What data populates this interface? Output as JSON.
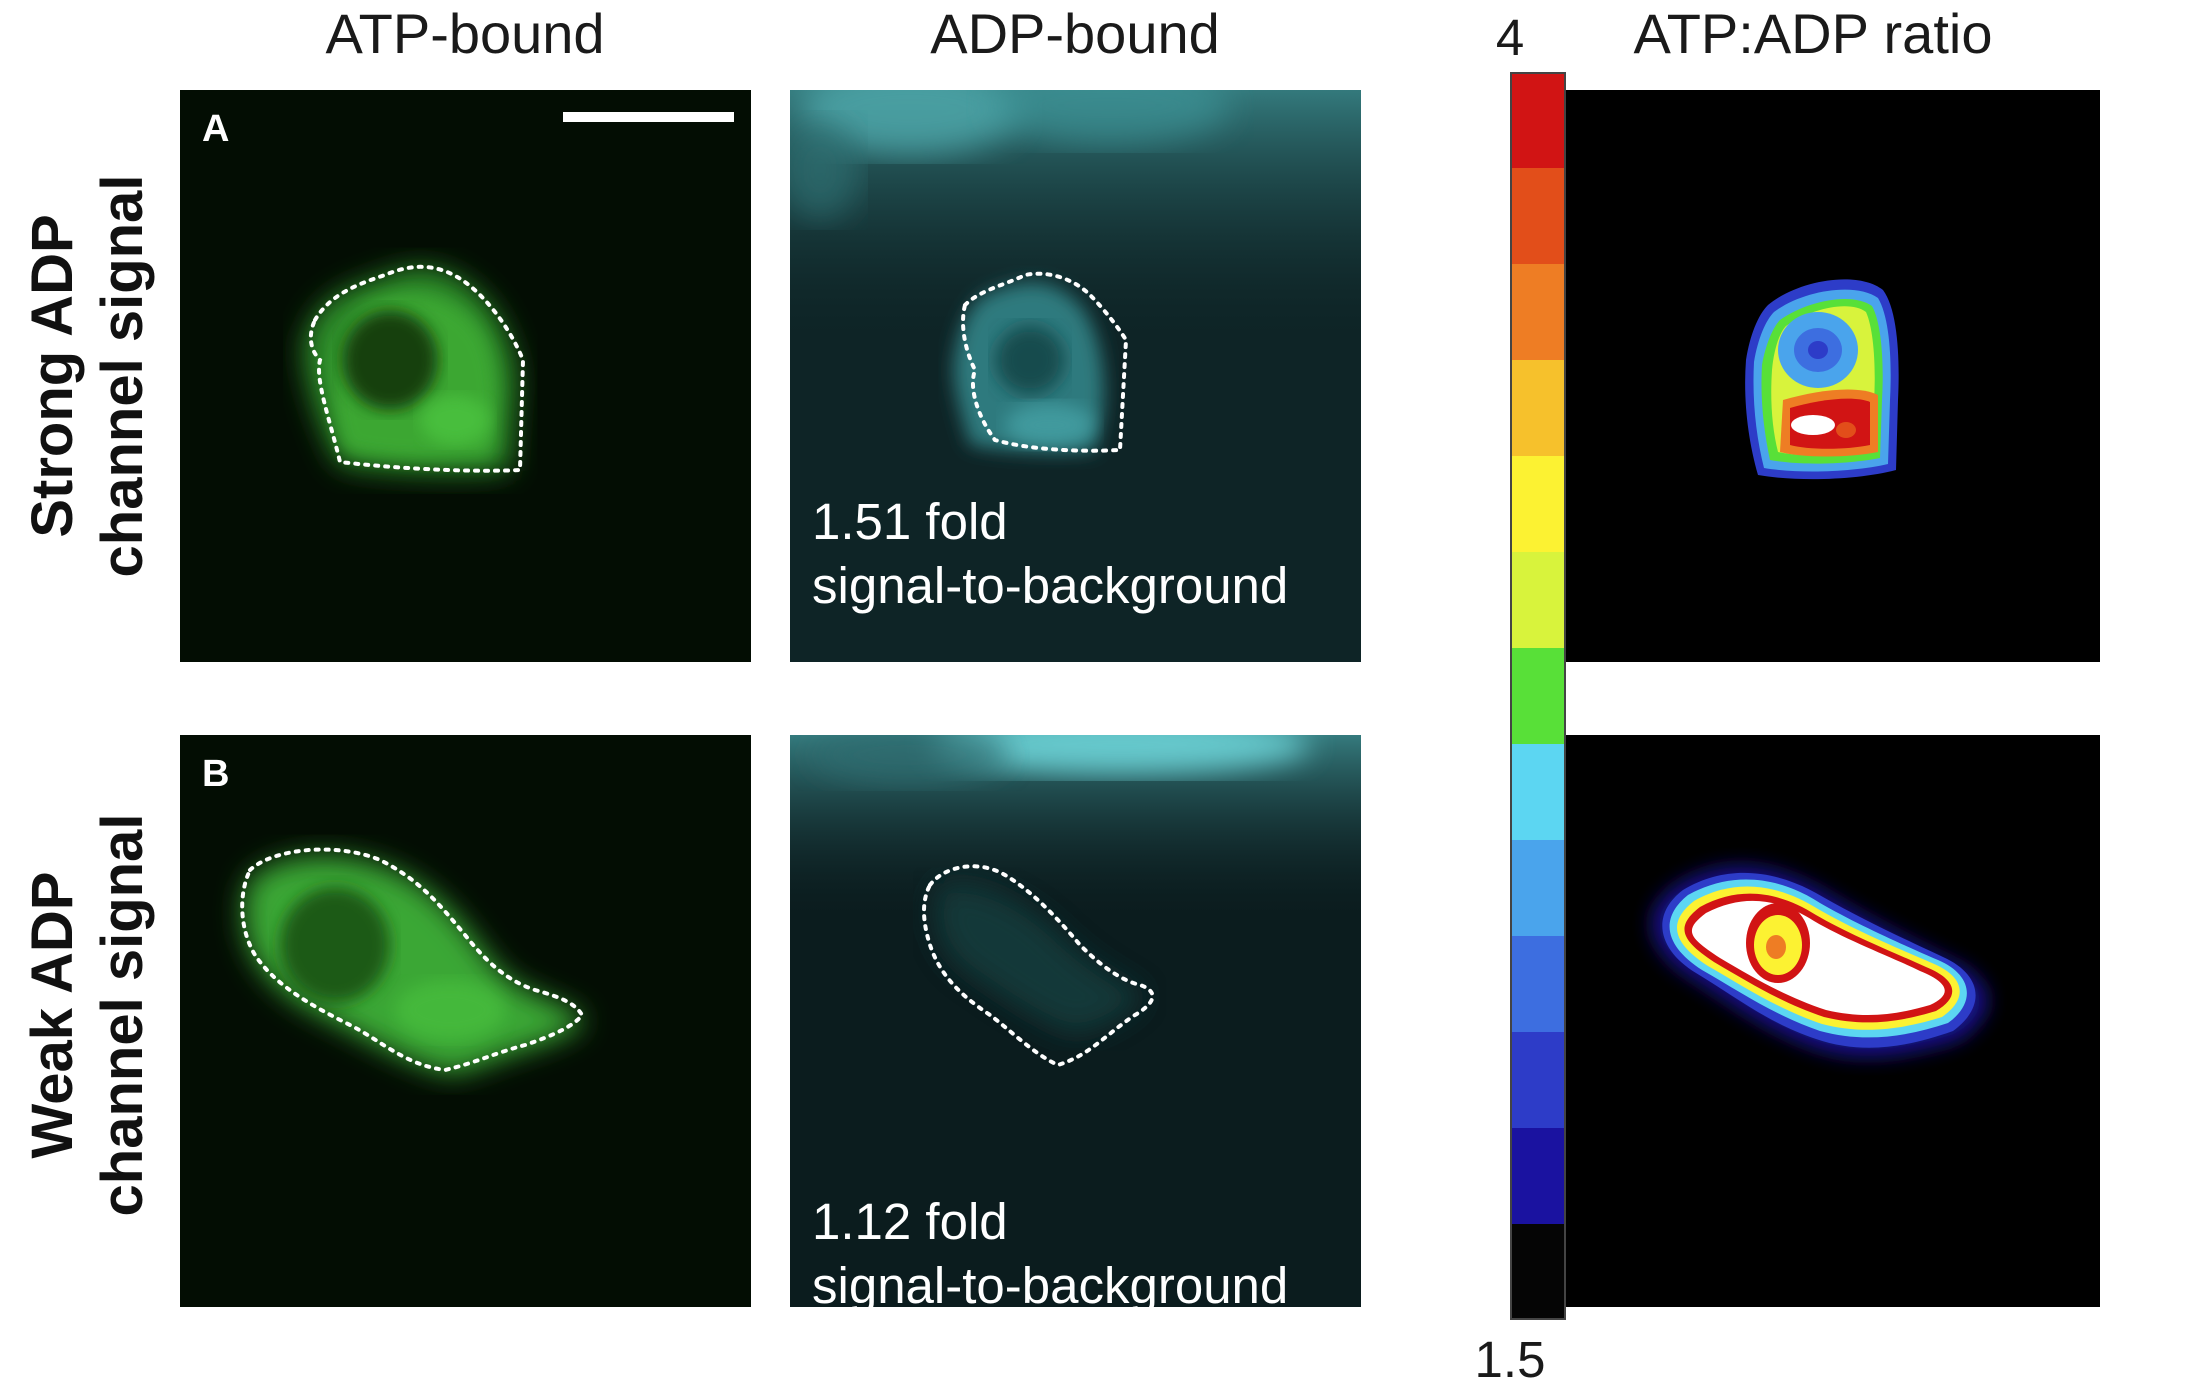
{
  "columns": {
    "atp": "ATP-bound",
    "adp": "ADP-bound",
    "ratio": "ATP:ADP ratio"
  },
  "rows": [
    {
      "letter": "A",
      "label_line1": "Strong ADP",
      "label_line2": "channel signal",
      "fold_line1": "1.51 fold",
      "fold_line2": "signal-to-background"
    },
    {
      "letter": "B",
      "label_line1": "Weak ADP",
      "label_line2": "channel signal",
      "fold_line1": "1.12 fold",
      "fold_line2": "signal-to-background"
    }
  ],
  "colorbar": {
    "max": "4",
    "min": "1.5",
    "colors": [
      "#d11414",
      "#e24e1a",
      "#ee7d24",
      "#f6c12c",
      "#fcf232",
      "#d8f33c",
      "#58e038",
      "#5cd6f2",
      "#4aa4ec",
      "#3d6ee0",
      "#2d3cc8",
      "#1a12a0",
      "#050505"
    ]
  },
  "colors": {
    "atp_green": "#3fc23a",
    "adp_cyan": "#5fd6dc",
    "background": "#000000"
  }
}
